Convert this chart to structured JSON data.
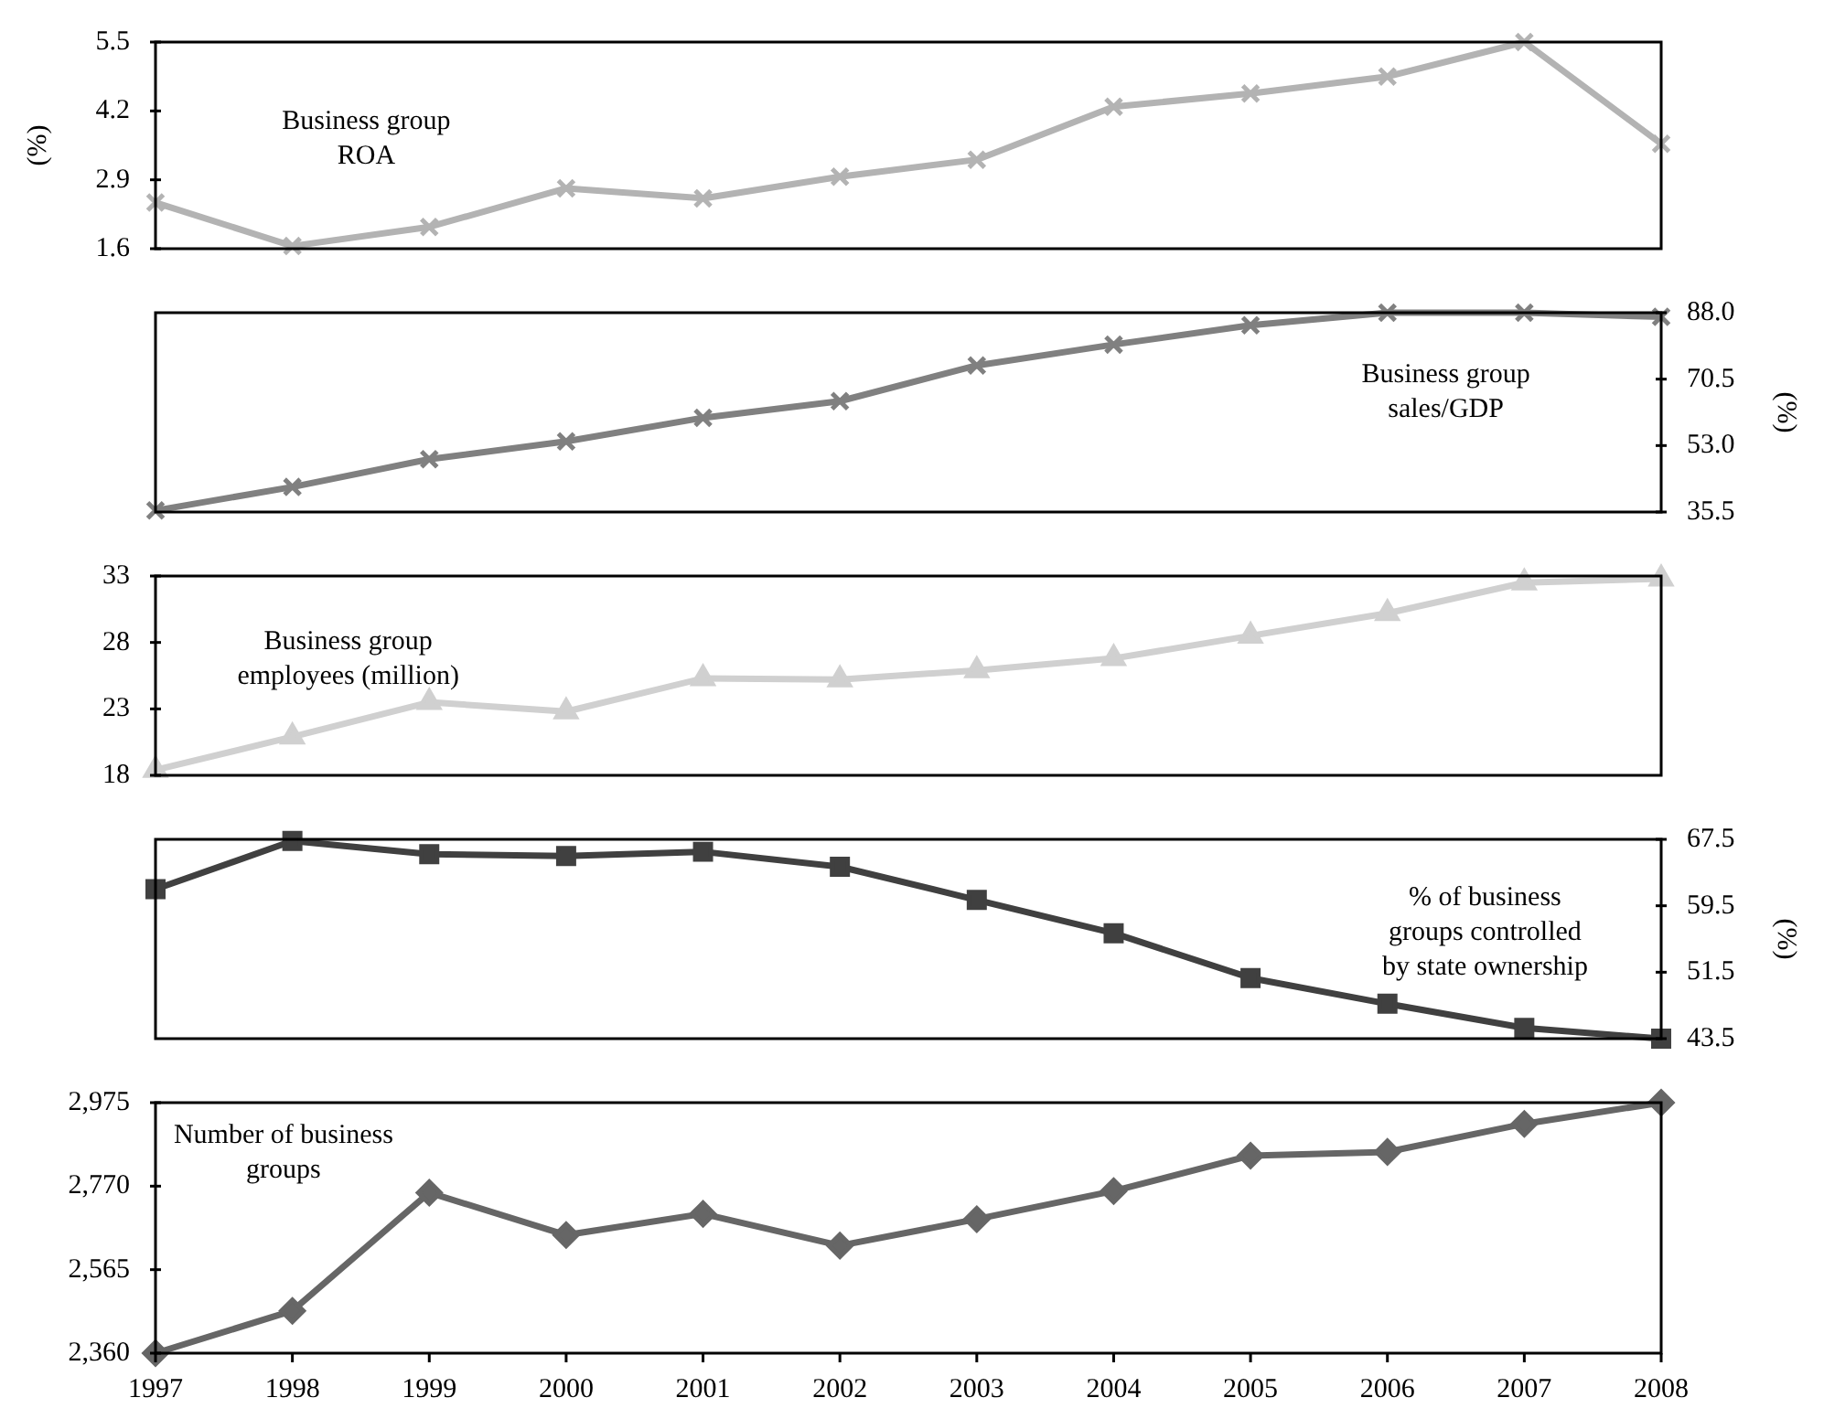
{
  "chart_data": [
    {
      "type": "line",
      "categories": [
        "1997",
        "1998",
        "1999",
        "2000",
        "2001",
        "2002",
        "2003",
        "2004",
        "2005",
        "2006",
        "2007",
        "2008"
      ],
      "series": [
        {
          "color": "#b3b3b3",
          "values": [
            2.47,
            1.65,
            2.01,
            2.74,
            2.55,
            2.96,
            3.28,
            4.28,
            4.53,
            4.85,
            5.5,
            3.58
          ]
        }
      ],
      "ylim": [
        1.6,
        5.5
      ],
      "yticks": [
        1.6,
        2.9,
        4.2,
        5.5
      ],
      "ylabel": "(%)",
      "marker": "cross",
      "tick_labels": "y",
      "annotations": [
        "Business group\nROA"
      ]
    },
    {
      "type": "line",
      "categories": [
        "1997",
        "1998",
        "1999",
        "2000",
        "2001",
        "2002",
        "2003",
        "2004",
        "2005",
        "2006",
        "2007",
        "2008"
      ],
      "series": [
        {
          "color": "#808080",
          "values": [
            35.9,
            42.1,
            49.4,
            54.1,
            60.3,
            64.7,
            74.1,
            79.6,
            84.7,
            88.0,
            88.0,
            86.9
          ]
        }
      ],
      "ylim": [
        35.5,
        88
      ],
      "yticks": [
        35.5,
        {
          "value": 53,
          "label": "53.0"
        },
        70.5,
        {
          "value": 88,
          "label": "88.0"
        }
      ],
      "ylabel": "(%)",
      "marker": "cross",
      "tick_labels": "y",
      "annotations": [
        "Business group\nsales/GDP"
      ]
    },
    {
      "type": "line",
      "categories": [
        "1997",
        "1998",
        "1999",
        "2000",
        "2001",
        "2002",
        "2003",
        "2004",
        "2005",
        "2006",
        "2007",
        "2008"
      ],
      "series": [
        {
          "color": "#d0d0d0",
          "values": [
            18.4,
            20.9,
            23.5,
            22.8,
            25.3,
            25.2,
            25.9,
            26.8,
            28.5,
            30.2,
            32.5,
            32.8
          ]
        }
      ],
      "ylim": [
        18,
        33
      ],
      "yticks": [
        18,
        23,
        28,
        33
      ],
      "marker": "triangle",
      "tick_labels": "y",
      "annotations": [
        "Business group\nemployees (million)"
      ]
    },
    {
      "type": "line",
      "categories": [
        "1997",
        "1998",
        "1999",
        "2000",
        "2001",
        "2002",
        "2003",
        "2004",
        "2005",
        "2006",
        "2007",
        "2008"
      ],
      "series": [
        {
          "color": "#404040",
          "values": [
            61.5,
            67.3,
            65.7,
            65.5,
            66.0,
            64.2,
            60.2,
            56.2,
            50.8,
            47.7,
            44.8,
            43.5
          ]
        }
      ],
      "ylim": [
        43.5,
        67.5
      ],
      "yticks": [
        43.5,
        51.5,
        59.5,
        67.5
      ],
      "ylabel": "(%)",
      "marker": "square",
      "tick_labels": "y",
      "annotations": [
        "% of business\ngroups controlled\nby state ownership"
      ]
    },
    {
      "type": "line",
      "categories": [
        "1997",
        "1998",
        "1999",
        "2000",
        "2001",
        "2002",
        "2003",
        "2004",
        "2005",
        "2006",
        "2007",
        "2008"
      ],
      "series": [
        {
          "color": "#666666",
          "values": [
            2360,
            2464,
            2754,
            2650,
            2702,
            2624,
            2689,
            2758,
            2845,
            2854,
            2923,
            2975
          ]
        }
      ],
      "ylim": [
        2360,
        2975
      ],
      "yticks": [
        {
          "value": 2360,
          "label": "2,360"
        },
        {
          "value": 2565,
          "label": "2,565"
        },
        {
          "value": 2770,
          "label": "2,770"
        },
        {
          "value": 2975,
          "label": "2,975"
        }
      ],
      "marker": "diamond",
      "annotations": [
        "Number of business\ngroups"
      ]
    }
  ]
}
